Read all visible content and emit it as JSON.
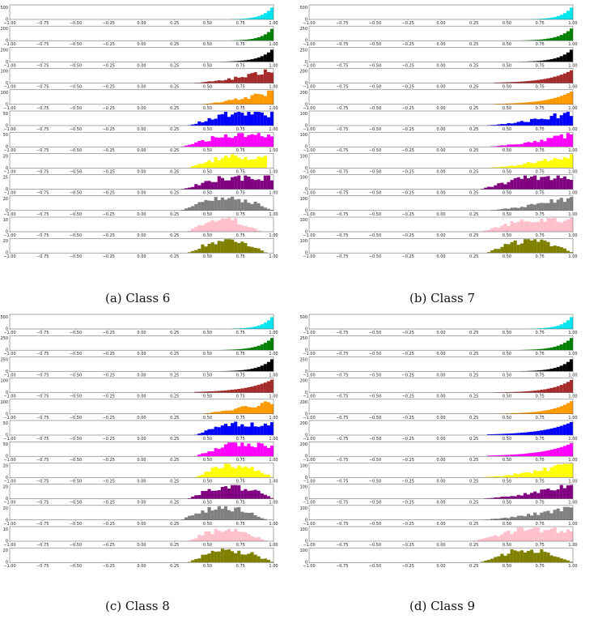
{
  "chart_data": [
    {
      "caption": "(a) Class 6",
      "type": "bar",
      "xlim": [
        -1,
        1
      ],
      "xticks": [
        "−1.00",
        "−0.75",
        "−0.50",
        "−0.25",
        "0.00",
        "0.25",
        "0.50",
        "0.75",
        "1.00"
      ],
      "series": [
        {
          "color": "#00e5ee",
          "ymax": 600,
          "yticks": [
            "500",
            "0"
          ],
          "shape": "exp",
          "lo": 0.55,
          "hi": 1.0,
          "decay": 0.08
        },
        {
          "color": "#008000",
          "ymax": 300,
          "yticks": [
            "200",
            "0"
          ],
          "shape": "exp",
          "lo": 0.55,
          "hi": 1.0,
          "decay": 0.08
        },
        {
          "color": "#000000",
          "ymax": 300,
          "yticks": [
            "200",
            "0"
          ],
          "shape": "exp",
          "lo": 0.5,
          "hi": 1.0,
          "decay": 0.1
        },
        {
          "color": "#a52a2a",
          "ymax": 130,
          "yticks": [
            "100",
            "0"
          ],
          "shape": "ramp",
          "lo": 0.35,
          "hi": 1.0
        },
        {
          "color": "#ff9900",
          "ymax": 150,
          "yticks": [
            "100",
            "0"
          ],
          "shape": "ramp",
          "lo": 0.4,
          "hi": 1.0
        },
        {
          "color": "#0000ff",
          "ymax": 70,
          "yticks": [
            "50",
            "0"
          ],
          "shape": "plateau",
          "lo": 0.35,
          "hi": 1.0
        },
        {
          "color": "#ff00ff",
          "ymax": 60,
          "yticks": [
            "50",
            "0"
          ],
          "shape": "plateau",
          "lo": 0.3,
          "hi": 1.0
        },
        {
          "color": "#ffff00",
          "ymax": 30,
          "yticks": [
            "20",
            "0"
          ],
          "shape": "plateau",
          "lo": 0.35,
          "hi": 0.95
        },
        {
          "color": "#800080",
          "ymax": 35,
          "yticks": [
            "25",
            "0"
          ],
          "shape": "plateau",
          "lo": 0.3,
          "hi": 1.0
        },
        {
          "color": "#808080",
          "ymax": 30,
          "yticks": [
            "20",
            "0"
          ],
          "shape": "hump",
          "lo": 0.3,
          "hi": 1.0
        },
        {
          "color": "#ffc0cb",
          "ymax": 15,
          "yticks": [
            "10",
            "0"
          ],
          "shape": "hump",
          "lo": 0.35,
          "hi": 0.9
        },
        {
          "color": "#808000",
          "ymax": 30,
          "yticks": [
            "20",
            "0"
          ],
          "shape": "hump",
          "lo": 0.35,
          "hi": 0.95
        }
      ]
    },
    {
      "caption": "(b) Class 7",
      "type": "bar",
      "xlim": [
        -1,
        1
      ],
      "xticks": [
        "−1.00",
        "−0.75",
        "−0.50",
        "−0.25",
        "0.00",
        "0.25",
        "0.50",
        "0.75",
        "1.00"
      ],
      "series": [
        {
          "color": "#00e5ee",
          "ymax": 600,
          "yticks": [
            "500",
            "0"
          ],
          "shape": "exp",
          "lo": 0.55,
          "hi": 1.0,
          "decay": 0.08
        },
        {
          "color": "#008000",
          "ymax": 300,
          "yticks": [
            "250",
            "0"
          ],
          "shape": "exp",
          "lo": 0.5,
          "hi": 1.0,
          "decay": 0.1
        },
        {
          "color": "#000000",
          "ymax": 300,
          "yticks": [
            "250",
            "0"
          ],
          "shape": "exp",
          "lo": 0.5,
          "hi": 1.0,
          "decay": 0.1
        },
        {
          "color": "#a52a2a",
          "ymax": 260,
          "yticks": [
            "200",
            "0"
          ],
          "shape": "exp",
          "lo": 0.4,
          "hi": 1.0,
          "decay": 0.18
        },
        {
          "color": "#ff9900",
          "ymax": 260,
          "yticks": [
            "200",
            "0"
          ],
          "shape": "exp",
          "lo": 0.4,
          "hi": 1.0,
          "decay": 0.18
        },
        {
          "color": "#0000ff",
          "ymax": 150,
          "yticks": [
            "100",
            "0"
          ],
          "shape": "ramp",
          "lo": 0.3,
          "hi": 1.0
        },
        {
          "color": "#ff00ff",
          "ymax": 150,
          "yticks": [
            "100",
            "0"
          ],
          "shape": "ramp",
          "lo": 0.3,
          "hi": 1.0
        },
        {
          "color": "#ffff00",
          "ymax": 130,
          "yticks": [
            "100",
            "0"
          ],
          "shape": "ramp",
          "lo": 0.3,
          "hi": 1.0
        },
        {
          "color": "#800080",
          "ymax": 130,
          "yticks": [
            "100",
            "0"
          ],
          "shape": "plateau",
          "lo": 0.3,
          "hi": 1.0
        },
        {
          "color": "#808080",
          "ymax": 130,
          "yticks": [
            "100",
            "0"
          ],
          "shape": "ramp",
          "lo": 0.3,
          "hi": 1.0
        },
        {
          "color": "#ffc0cb",
          "ymax": 130,
          "yticks": [
            "100",
            "0"
          ],
          "shape": "plateau",
          "lo": 0.3,
          "hi": 1.0
        },
        {
          "color": "#808000",
          "ymax": 130,
          "yticks": [
            "100",
            "0"
          ],
          "shape": "hump",
          "lo": 0.35,
          "hi": 1.0
        }
      ]
    },
    {
      "caption": "(c) Class 8",
      "type": "bar",
      "xlim": [
        -1,
        1
      ],
      "xticks": [
        "−1.00",
        "−0.75",
        "−0.50",
        "−0.25",
        "0.00",
        "0.25",
        "0.50",
        "0.75",
        "1.00"
      ],
      "series": [
        {
          "color": "#00e5ee",
          "ymax": 600,
          "yticks": [
            "500",
            "0"
          ],
          "shape": "exp",
          "lo": 0.55,
          "hi": 1.0,
          "decay": 0.08
        },
        {
          "color": "#008000",
          "ymax": 300,
          "yticks": [
            "250",
            "0"
          ],
          "shape": "exp",
          "lo": 0.5,
          "hi": 1.0,
          "decay": 0.1
        },
        {
          "color": "#000000",
          "ymax": 300,
          "yticks": [
            "250",
            "0"
          ],
          "shape": "exp",
          "lo": 0.5,
          "hi": 1.0,
          "decay": 0.1
        },
        {
          "color": "#a52a2a",
          "ymax": 130,
          "yticks": [
            "100",
            "0"
          ],
          "shape": "exp",
          "lo": 0.4,
          "hi": 1.0,
          "decay": 0.2
        },
        {
          "color": "#ff9900",
          "ymax": 130,
          "yticks": [
            "100",
            "0"
          ],
          "shape": "ramp",
          "lo": 0.4,
          "hi": 1.0
        },
        {
          "color": "#0000ff",
          "ymax": 70,
          "yticks": [
            "50",
            "0"
          ],
          "shape": "plateau",
          "lo": 0.4,
          "hi": 1.0
        },
        {
          "color": "#ff00ff",
          "ymax": 60,
          "yticks": [
            "50",
            "0"
          ],
          "shape": "plateau",
          "lo": 0.4,
          "hi": 1.0
        },
        {
          "color": "#ffff00",
          "ymax": 30,
          "yticks": [
            "20",
            "0"
          ],
          "shape": "hump",
          "lo": 0.4,
          "hi": 1.0
        },
        {
          "color": "#800080",
          "ymax": 30,
          "yticks": [
            "20",
            "0"
          ],
          "shape": "hump",
          "lo": 0.35,
          "hi": 1.0
        },
        {
          "color": "#808080",
          "ymax": 30,
          "yticks": [
            "20",
            "0"
          ],
          "shape": "hump",
          "lo": 0.3,
          "hi": 0.95
        },
        {
          "color": "#ffc0cb",
          "ymax": 15,
          "yticks": [
            "10",
            "0"
          ],
          "shape": "hump",
          "lo": 0.35,
          "hi": 0.95
        },
        {
          "color": "#808000",
          "ymax": 30,
          "yticks": [
            "20",
            "0"
          ],
          "shape": "hump",
          "lo": 0.35,
          "hi": 1.0
        }
      ]
    },
    {
      "caption": "(d) Class 9",
      "type": "bar",
      "xlim": [
        -1,
        1
      ],
      "xticks": [
        "−1.00",
        "−0.75",
        "−0.50",
        "−0.25",
        "0.00",
        "0.25",
        "0.50",
        "0.75",
        "1.00"
      ],
      "series": [
        {
          "color": "#00e5ee",
          "ymax": 600,
          "yticks": [
            "500",
            "0"
          ],
          "shape": "exp",
          "lo": 0.55,
          "hi": 1.0,
          "decay": 0.08
        },
        {
          "color": "#008000",
          "ymax": 300,
          "yticks": [
            "250",
            "0"
          ],
          "shape": "exp",
          "lo": 0.5,
          "hi": 1.0,
          "decay": 0.1
        },
        {
          "color": "#000000",
          "ymax": 300,
          "yticks": [
            "250",
            "0"
          ],
          "shape": "exp",
          "lo": 0.5,
          "hi": 1.0,
          "decay": 0.1
        },
        {
          "color": "#a52a2a",
          "ymax": 260,
          "yticks": [
            "200",
            "0"
          ],
          "shape": "exp",
          "lo": 0.4,
          "hi": 1.0,
          "decay": 0.15
        },
        {
          "color": "#ff9900",
          "ymax": 260,
          "yticks": [
            "200",
            "0"
          ],
          "shape": "exp",
          "lo": 0.4,
          "hi": 1.0,
          "decay": 0.15
        },
        {
          "color": "#0000ff",
          "ymax": 260,
          "yticks": [
            "200",
            "0"
          ],
          "shape": "exp",
          "lo": 0.35,
          "hi": 1.0,
          "decay": 0.22
        },
        {
          "color": "#ff00ff",
          "ymax": 260,
          "yticks": [
            "200",
            "0"
          ],
          "shape": "exp",
          "lo": 0.35,
          "hi": 1.0,
          "decay": 0.22
        },
        {
          "color": "#ffff00",
          "ymax": 150,
          "yticks": [
            "100",
            "0"
          ],
          "shape": "ramp",
          "lo": 0.25,
          "hi": 1.0
        },
        {
          "color": "#800080",
          "ymax": 130,
          "yticks": [
            "100",
            "0"
          ],
          "shape": "ramp",
          "lo": 0.25,
          "hi": 1.0
        },
        {
          "color": "#808080",
          "ymax": 130,
          "yticks": [
            "100",
            "0"
          ],
          "shape": "ramp",
          "lo": 0.25,
          "hi": 1.0
        },
        {
          "color": "#ffc0cb",
          "ymax": 130,
          "yticks": [
            "100",
            "0"
          ],
          "shape": "plateau",
          "lo": 0.25,
          "hi": 1.0
        },
        {
          "color": "#808000",
          "ymax": 130,
          "yticks": [
            "100",
            "0"
          ],
          "shape": "hump",
          "lo": 0.3,
          "hi": 1.0
        }
      ]
    }
  ]
}
